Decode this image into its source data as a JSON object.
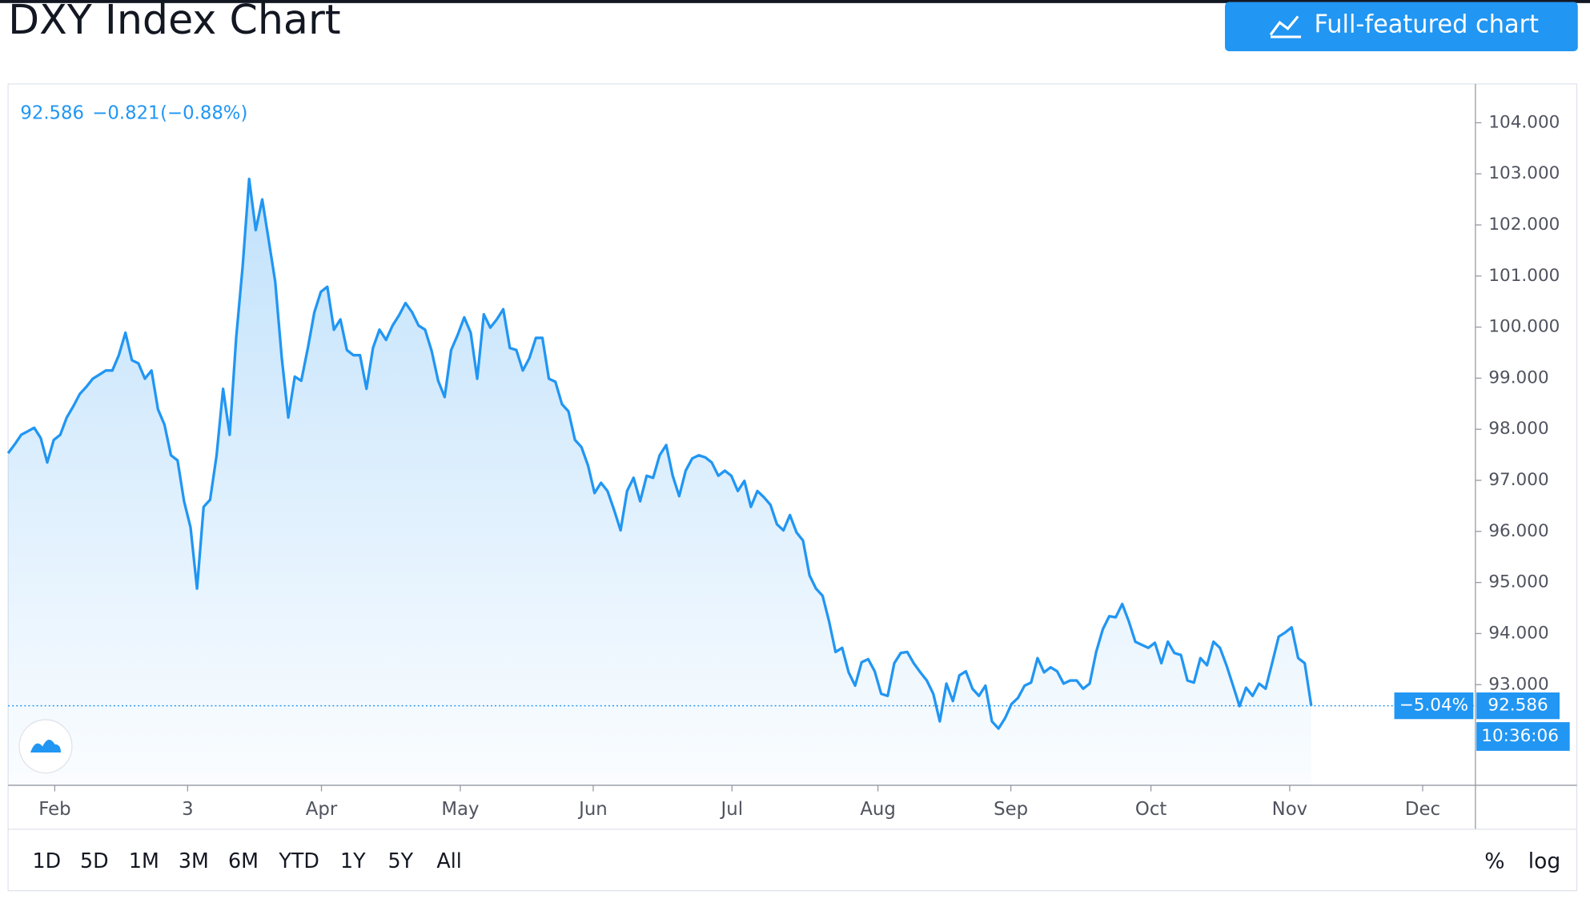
{
  "header": {
    "title": "DXY Index Chart",
    "button": "Full-featured chart"
  },
  "chart_data": {
    "type": "line",
    "legend_text": {
      "last": "92.586",
      "change": "−0.821",
      "change_pct": "(−0.88%)"
    },
    "series": [
      {
        "color": "#2196f3",
        "values": [
          97.53,
          97.7,
          97.89,
          97.96,
          98.03,
          97.83,
          97.35,
          97.79,
          97.89,
          98.23,
          98.45,
          98.69,
          98.83,
          98.99,
          99.07,
          99.15,
          99.15,
          99.45,
          99.89,
          99.35,
          99.29,
          98.99,
          99.15,
          98.39,
          98.09,
          97.49,
          97.39,
          96.59,
          96.08,
          94.88,
          96.48,
          96.62,
          97.49,
          98.79,
          97.89,
          99.79,
          101.19,
          102.9,
          101.9,
          102.5,
          101.7,
          100.89,
          99.39,
          98.23,
          99.03,
          98.95,
          99.59,
          100.29,
          100.69,
          100.79,
          99.95,
          100.15,
          99.55,
          99.45,
          99.45,
          98.79,
          99.59,
          99.95,
          99.75,
          100.03,
          100.23,
          100.47,
          100.29,
          100.03,
          99.95,
          99.53,
          98.95,
          98.63,
          99.55,
          99.85,
          100.19,
          99.89,
          98.99,
          100.25,
          99.99,
          100.15,
          100.35,
          99.59,
          99.55,
          99.15,
          99.39,
          99.79,
          99.79,
          98.99,
          98.93,
          98.49,
          98.35,
          97.79,
          97.65,
          97.29,
          96.75,
          96.95,
          96.79,
          96.42,
          96.02,
          96.79,
          97.05,
          96.59,
          97.09,
          97.05,
          97.49,
          97.69,
          97.09,
          96.69,
          97.19,
          97.43,
          97.49,
          97.45,
          97.35,
          97.09,
          97.19,
          97.09,
          96.79,
          96.99,
          96.48,
          96.79,
          96.67,
          96.52,
          96.14,
          96.02,
          96.32,
          95.98,
          95.82,
          95.14,
          94.88,
          94.74,
          94.24,
          93.64,
          93.72,
          93.24,
          92.98,
          93.44,
          93.5,
          93.26,
          92.82,
          92.78,
          93.42,
          93.62,
          93.64,
          93.42,
          93.24,
          93.08,
          92.82,
          92.28,
          93.02,
          92.68,
          93.18,
          93.26,
          92.92,
          92.78,
          92.98,
          92.28,
          92.14,
          92.34,
          92.62,
          92.74,
          92.98,
          93.04,
          93.52,
          93.24,
          93.34,
          93.26,
          93.02,
          93.08,
          93.08,
          92.92,
          93.02,
          93.64,
          94.08,
          94.34,
          94.32,
          94.58,
          94.24,
          93.84,
          93.78,
          93.72,
          93.82,
          93.42,
          93.84,
          93.62,
          93.58,
          93.08,
          93.04,
          93.52,
          93.38,
          93.84,
          93.72,
          93.38,
          92.98,
          92.58,
          92.94,
          92.78,
          93.02,
          92.92,
          93.42,
          93.94,
          94.02,
          94.12,
          93.52,
          93.42,
          92.586
        ]
      }
    ],
    "xlim": [
      0,
      225.2
    ],
    "xticks": [
      {
        "value": 7.16,
        "label": "Feb"
      },
      {
        "value": 27.55,
        "label": "3"
      },
      {
        "value": 48.09,
        "label": "Apr"
      },
      {
        "value": 69.4,
        "label": "May"
      },
      {
        "value": 89.8,
        "label": "Jun"
      },
      {
        "value": 111.1,
        "label": "Jul"
      },
      {
        "value": 133.5,
        "label": "Aug"
      },
      {
        "value": 153.9,
        "label": "Sep"
      },
      {
        "value": 175.4,
        "label": "Oct"
      },
      {
        "value": 196.7,
        "label": "Nov"
      },
      {
        "value": 217.1,
        "label": "Dec"
      }
    ],
    "ylim": [
      91.03,
      104.76
    ],
    "yticks": [
      {
        "value": 93,
        "label": "93.000"
      },
      {
        "value": 94,
        "label": "94.000"
      },
      {
        "value": 95,
        "label": "95.000"
      },
      {
        "value": 96,
        "label": "96.000"
      },
      {
        "value": 97,
        "label": "97.000"
      },
      {
        "value": 98,
        "label": "98.000"
      },
      {
        "value": 99,
        "label": "99.000"
      },
      {
        "value": 100,
        "label": "100.000"
      },
      {
        "value": 101,
        "label": "101.000"
      },
      {
        "value": 102,
        "label": "102.000"
      },
      {
        "value": 103,
        "label": "103.000"
      },
      {
        "value": 104,
        "label": "104.000"
      }
    ],
    "price_tags": {
      "percent": "−5.04%",
      "price": "92.586",
      "countdown": "10:36:06"
    },
    "log_scale": false
  },
  "toolbar": {
    "ranges": [
      "1D",
      "5D",
      "1M",
      "3M",
      "6M",
      "YTD",
      "1Y",
      "5Y",
      "All"
    ],
    "percent": "%",
    "log": "log"
  }
}
